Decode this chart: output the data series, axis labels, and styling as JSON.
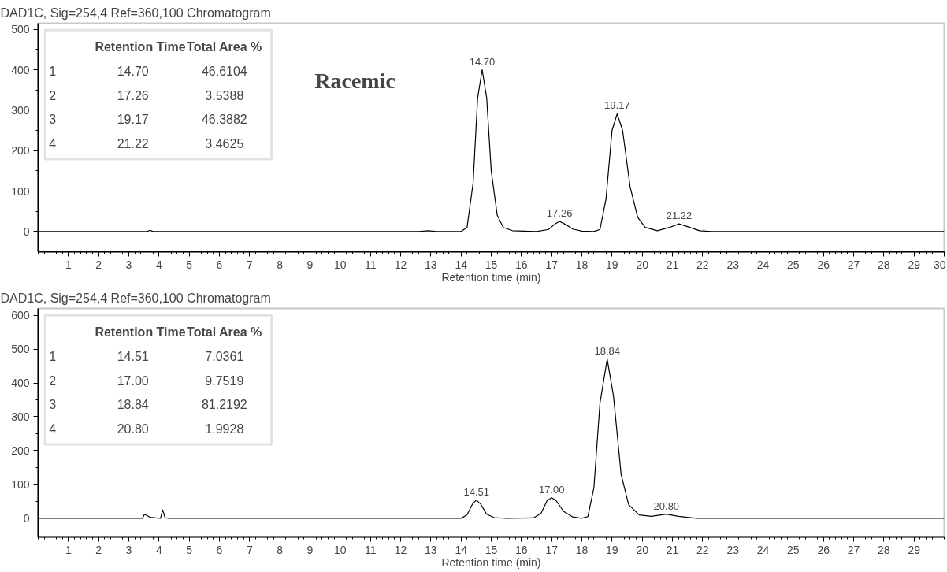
{
  "chart_data": [
    {
      "type": "line",
      "title": "DAD1C, Sig=254,4  Ref=360,100 Chromatogram",
      "xlabel": "Retention time (min)",
      "xlim": [
        0,
        30
      ],
      "xticks": [
        1,
        2,
        3,
        4,
        5,
        6,
        7,
        8,
        9,
        10,
        11,
        12,
        13,
        14,
        15,
        16,
        17,
        18,
        19,
        20,
        21,
        22,
        23,
        24,
        25,
        26,
        27,
        28,
        29,
        30
      ],
      "ylim": [
        -50,
        515
      ],
      "yticks": [
        0,
        100,
        200,
        300,
        400,
        500
      ],
      "grid": false,
      "series": [
        {
          "color": "#000000",
          "x": [
            0,
            3.6,
            3.7,
            3.8,
            12.6,
            12.9,
            13.2,
            14.0,
            14.2,
            14.4,
            14.55,
            14.7,
            14.85,
            15.0,
            15.2,
            15.4,
            15.7,
            16.5,
            16.9,
            17.1,
            17.26,
            17.45,
            17.7,
            18.0,
            18.4,
            18.6,
            18.8,
            19.0,
            19.17,
            19.35,
            19.6,
            19.85,
            20.1,
            20.5,
            20.9,
            21.22,
            21.5,
            21.9,
            22.3,
            30
          ],
          "values": [
            0,
            0,
            3,
            0,
            0,
            2,
            0,
            0,
            10,
            120,
            330,
            400,
            330,
            150,
            40,
            10,
            2,
            0,
            5,
            18,
            25,
            18,
            6,
            1,
            0,
            5,
            80,
            250,
            291,
            250,
            110,
            35,
            10,
            2,
            10,
            19,
            12,
            2,
            0,
            0
          ]
        }
      ],
      "annotations": [
        "Retention Time",
        "Total Area %",
        "1",
        "14.70",
        "46.6104",
        "2",
        "17.26",
        "3.5388",
        "3",
        "19.17",
        "46.3882",
        "4",
        "21.22",
        "3.4625",
        "Racemic",
        {
          "text": "14.70",
          "x": 14.7,
          "y": 400
        },
        {
          "text": "17.26",
          "x": 17.26,
          "y": 25
        },
        {
          "text": "19.17",
          "x": 19.17,
          "y": 291
        },
        {
          "text": "21.22",
          "x": 21.22,
          "y": 19
        }
      ]
    },
    {
      "type": "line",
      "title": "DAD1C, Sig=254,4  Ref=360,100 Chromatogram",
      "xlabel": "Retention time (min)",
      "xlim": [
        0,
        30
      ],
      "xticks": [
        1,
        2,
        3,
        4,
        5,
        6,
        7,
        8,
        9,
        10,
        11,
        12,
        13,
        14,
        15,
        16,
        17,
        18,
        19,
        20,
        21,
        22,
        23,
        24,
        25,
        26,
        27,
        28,
        29
      ],
      "ylim": [
        -55,
        620
      ],
      "yticks": [
        0,
        100,
        200,
        300,
        400,
        500,
        600
      ],
      "grid": false,
      "series": [
        {
          "color": "#000000",
          "x": [
            0,
            3.45,
            3.52,
            3.7,
            4.05,
            4.12,
            4.2,
            4.3,
            14.0,
            14.2,
            14.38,
            14.51,
            14.65,
            14.85,
            15.1,
            15.5,
            16.4,
            16.65,
            16.85,
            17.0,
            17.15,
            17.4,
            17.7,
            18.0,
            18.2,
            18.4,
            18.6,
            18.84,
            19.05,
            19.3,
            19.55,
            19.9,
            20.3,
            20.8,
            21.2,
            21.8,
            30
          ],
          "values": [
            0,
            0,
            12,
            3,
            0,
            25,
            2,
            0,
            0,
            10,
            42,
            54,
            42,
            12,
            2,
            0,
            1,
            15,
            52,
            61,
            52,
            20,
            4,
            0,
            5,
            90,
            340,
            470,
            360,
            130,
            40,
            10,
            6,
            12,
            6,
            0,
            0
          ]
        }
      ],
      "annotations": [
        "Retention Time",
        "Total Area %",
        "1",
        "14.51",
        "7.0361",
        "2",
        "17.00",
        "9.7519",
        "3",
        "18.84",
        "81.2192",
        "4",
        "20.80",
        "1.9928",
        {
          "text": "14.51",
          "x": 14.51,
          "y": 54
        },
        {
          "text": "17.00",
          "x": 17.0,
          "y": 61
        },
        {
          "text": "18.84",
          "x": 18.84,
          "y": 470
        },
        {
          "text": "20.80",
          "x": 20.8,
          "y": 12
        }
      ]
    }
  ]
}
